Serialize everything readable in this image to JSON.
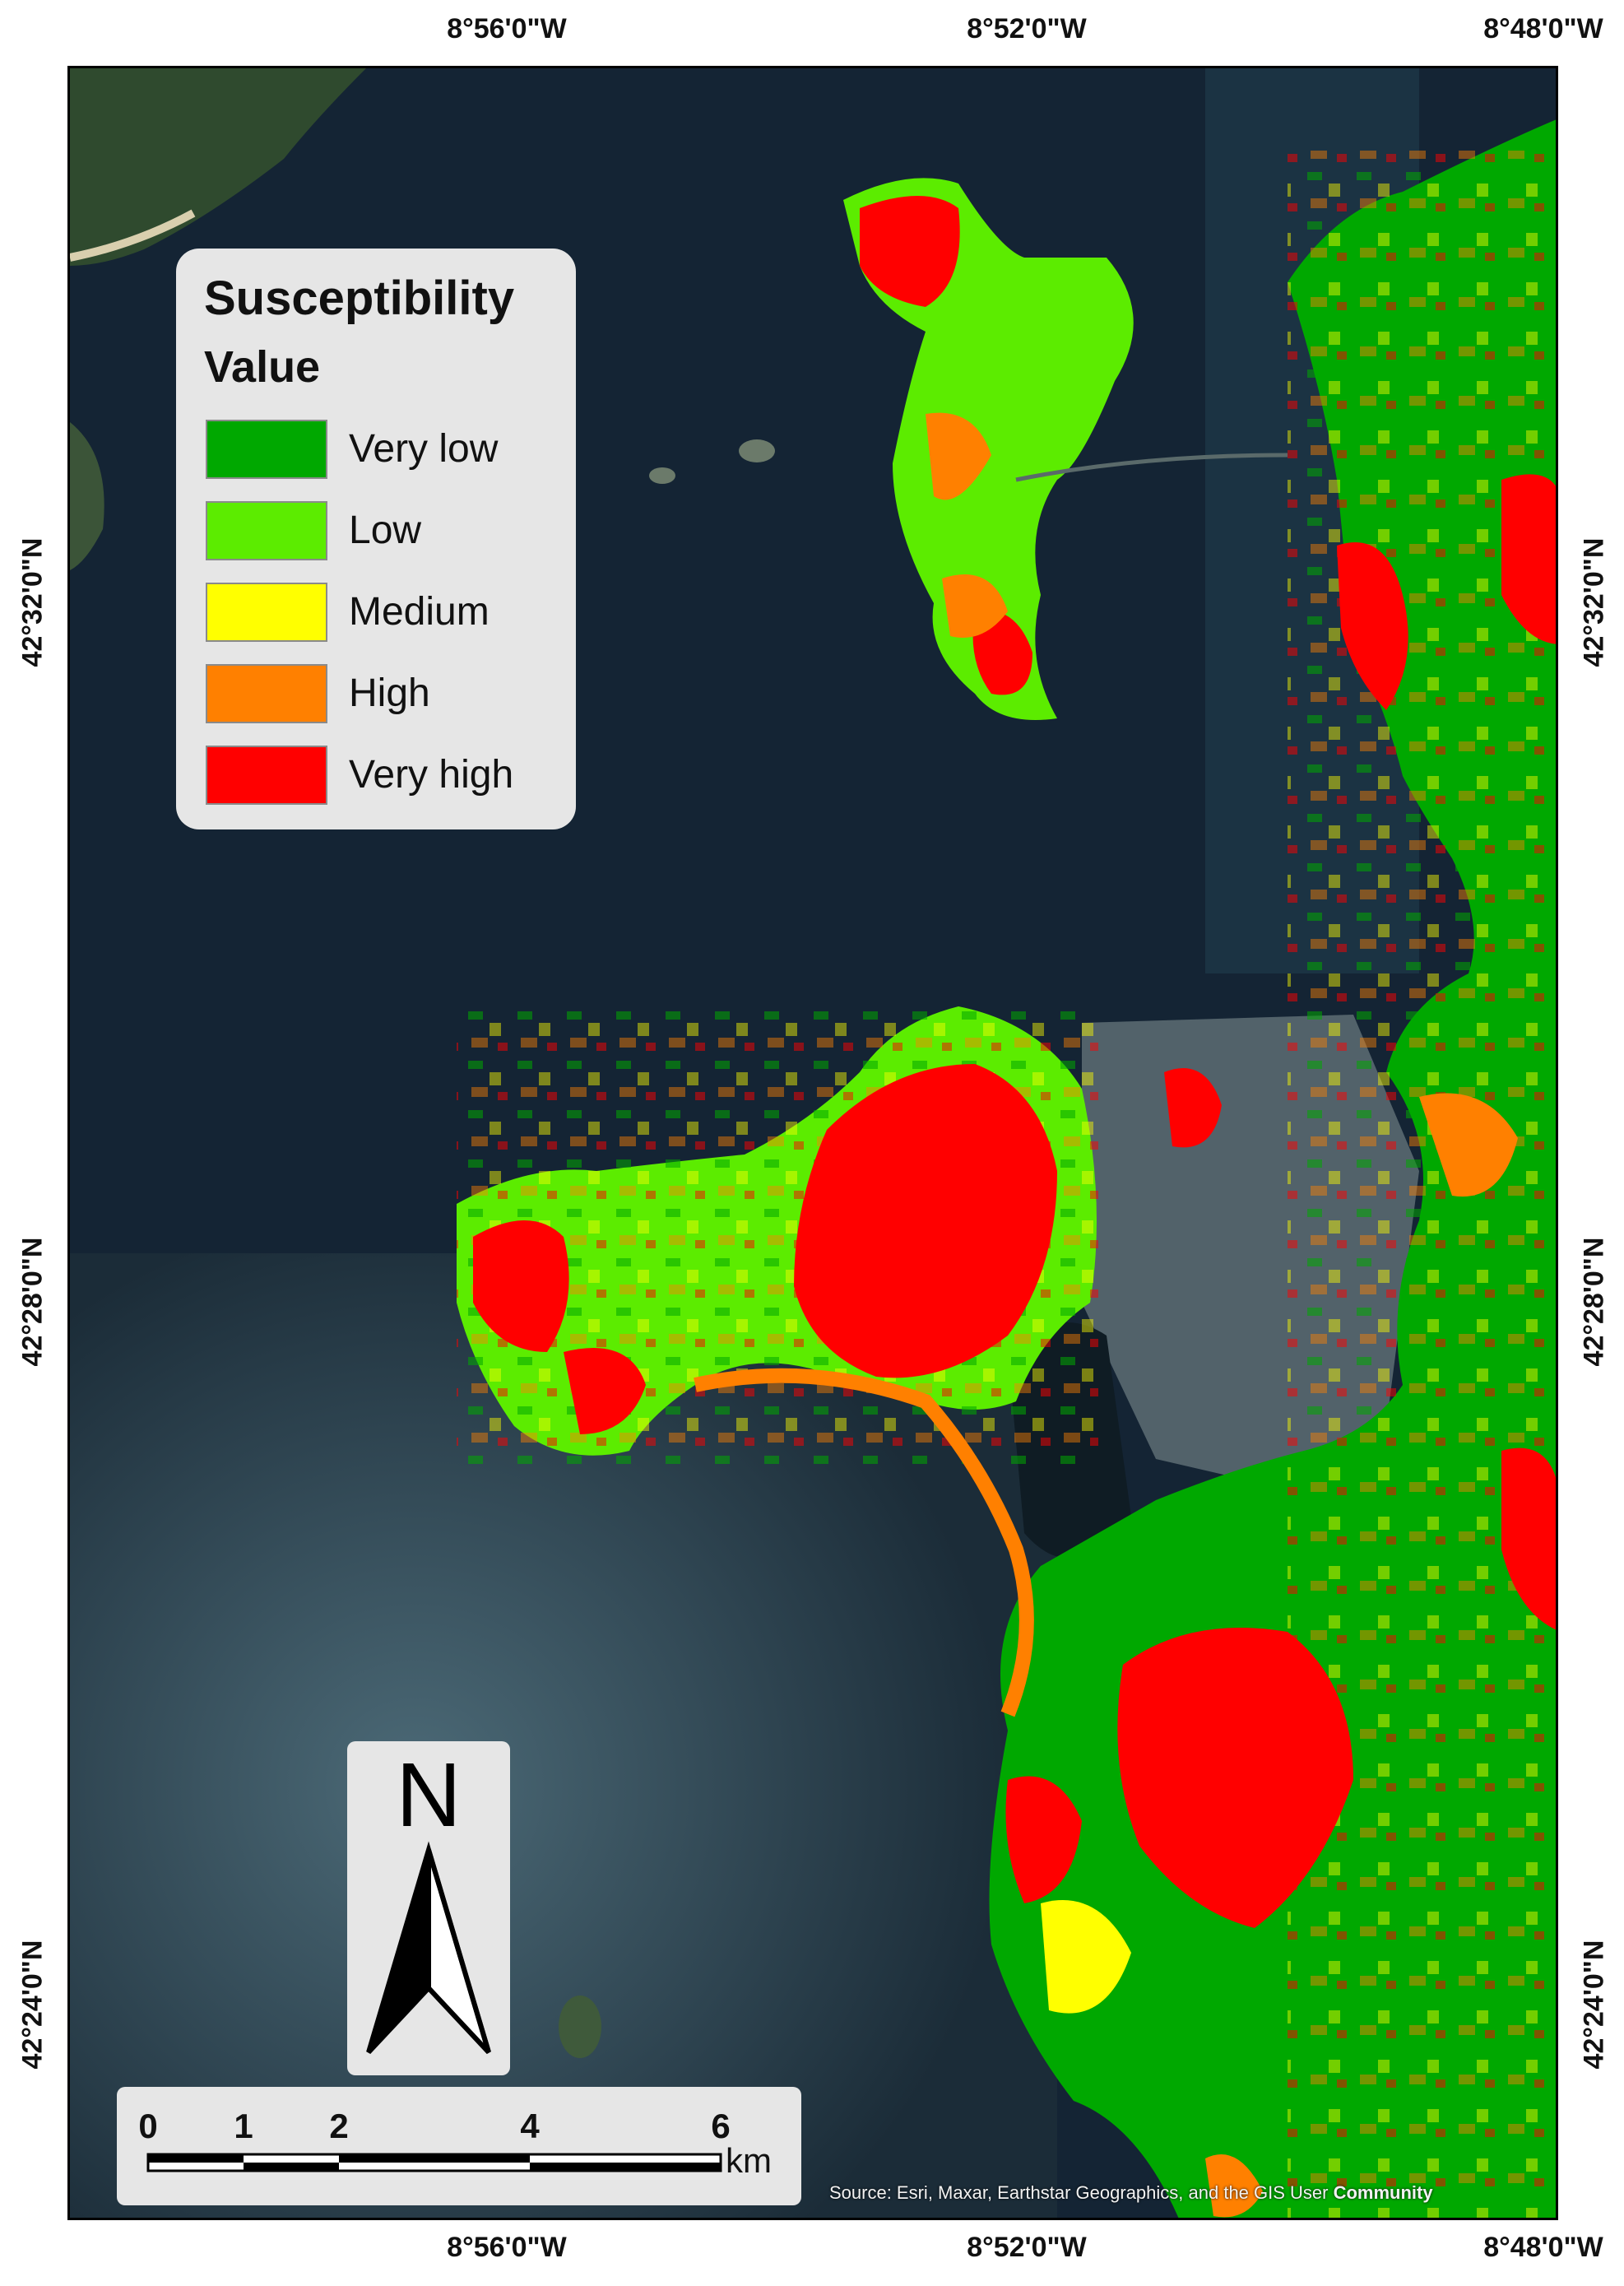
{
  "map": {
    "graticule": {
      "top": [
        "8°56'0\"W",
        "8°52'0\"W",
        "8°48'0\"W"
      ],
      "bottom": [
        "8°56'0\"W",
        "8°52'0\"W",
        "8°48'0\"W"
      ],
      "left": [
        "42°32'0\"N",
        "42°28'0\"N",
        "42°24'0\"N"
      ],
      "right": [
        "42°32'0\"N",
        "42°28'0\"N",
        "42°24'0\"N"
      ]
    },
    "attribution": "Source: Esri, Maxar, Earthstar Geographics, and the GIS User",
    "attribution_bold": "Community"
  },
  "legend": {
    "title": "Susceptibility",
    "subtitle": "Value",
    "classes": [
      {
        "label": "Very low",
        "color": "#00a800"
      },
      {
        "label": "Low",
        "color": "#5cec00"
      },
      {
        "label": "Medium",
        "color": "#ffff00"
      },
      {
        "label": "High",
        "color": "#ff8000"
      },
      {
        "label": "Very high",
        "color": "#ff0000"
      }
    ]
  },
  "north_arrow": {
    "letter": "N"
  },
  "scale_bar": {
    "labels": [
      "0",
      "1",
      "2",
      "4",
      "6"
    ],
    "unit": "km"
  }
}
